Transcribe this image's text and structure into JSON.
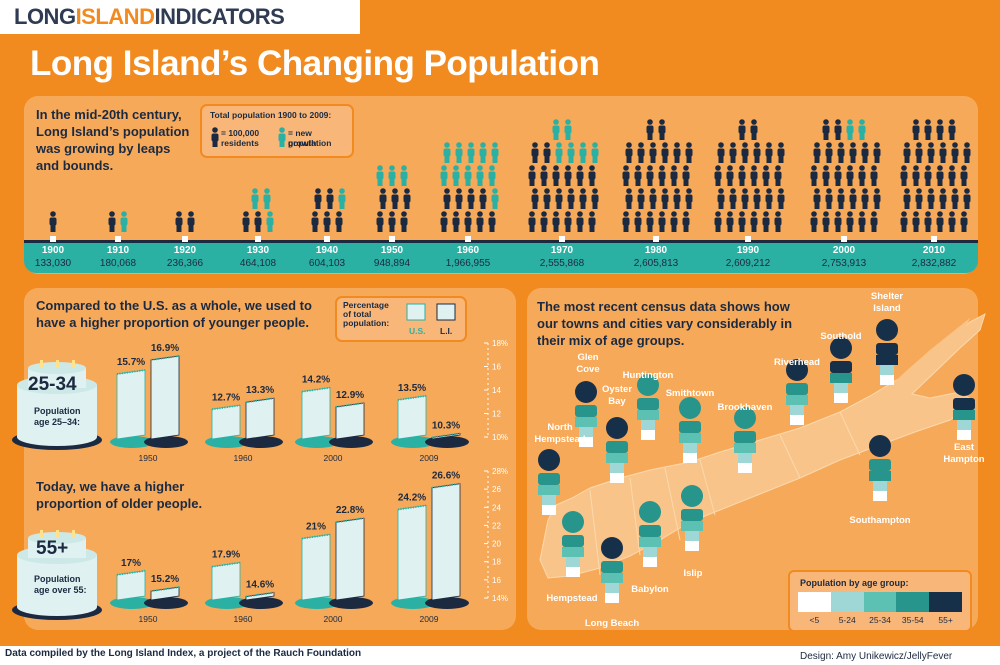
{
  "brand": {
    "part1": "LONG",
    "part2": "ISLAND",
    "part3": "INDICATORS"
  },
  "title": "Long Island’s Changing Population",
  "intro": {
    "line1": "In the mid-20th century,",
    "line2": "Long Island’s population",
    "line3": "was growing by leaps",
    "line4": "and bounds."
  },
  "timeline_legend": {
    "title": "Total population 1900 to 2009:",
    "item1_line1": "= 100,000",
    "item1_line2": "residents",
    "item2_line1": "= new population",
    "item2_line2": "growth"
  },
  "colors": {
    "background": "#f18a1f",
    "panel": "#f7a95a",
    "navy": "#1b2a40",
    "teal": "#2ab1a4",
    "light": "#dff1f0",
    "age_lt5": "#ffffff",
    "age_5_24": "#9fd7d6",
    "age_25_34": "#5cc1b3",
    "age_35_54": "#27958c",
    "age_55plus": "#17304a"
  },
  "section2": {
    "heading_line1": "Compared to the U.S. as a whole, we used to",
    "heading_line2": "have a higher proportion of younger people.",
    "legend_title_line1": "Percentage",
    "legend_title_line2": "of total",
    "legend_title_line3": "population:",
    "legend_us": "U.S.",
    "legend_li": "L.I.",
    "cake1_label": "25-34",
    "cake1_caption_line1": "Population",
    "cake1_caption_line2": "age 25–34:",
    "heading2_line1": "Today, we have a higher",
    "heading2_line2": "proportion of older people.",
    "cake2_label": "55+",
    "cake2_caption_line1": "Population",
    "cake2_caption_line2": "age over 55:"
  },
  "section3": {
    "heading_line1": "The most recent census data shows how",
    "heading_line2": "our towns and cities vary considerably in",
    "heading_line3": "their mix of age groups.",
    "legend_title": "Population by age group:",
    "legend_labels": [
      "<5",
      "5-24",
      "25-34",
      "35-54",
      "55+"
    ],
    "places": [
      {
        "name": "Glen Cove",
        "line1": "Glen",
        "line2": "Cove"
      },
      {
        "name": "Oyster Bay",
        "line1": "Oyster",
        "line2": "Bay"
      },
      {
        "name": "Huntington",
        "line1": "Huntington",
        "line2": ""
      },
      {
        "name": "Smithtown",
        "line1": "Smithtown",
        "line2": ""
      },
      {
        "name": "Brookhaven",
        "line1": "Brookhaven",
        "line2": ""
      },
      {
        "name": "Riverhead",
        "line1": "Riverhead",
        "line2": ""
      },
      {
        "name": "Southold",
        "line1": "Southold",
        "line2": ""
      },
      {
        "name": "Shelter Island",
        "line1": "Shelter",
        "line2": "Island"
      },
      {
        "name": "North Hempstead",
        "line1": "North",
        "line2": "Hempstead"
      },
      {
        "name": "East Hampton",
        "line1": "East",
        "line2": "Hampton"
      },
      {
        "name": "Southampton",
        "line1": "Southampton",
        "line2": ""
      },
      {
        "name": "Hempstead",
        "line1": "Hempstead",
        "line2": ""
      },
      {
        "name": "Islip",
        "line1": "Islip",
        "line2": ""
      },
      {
        "name": "Babylon",
        "line1": "Babylon",
        "line2": ""
      },
      {
        "name": "Long Beach",
        "line1": "Long Beach",
        "line2": ""
      }
    ]
  },
  "footer": {
    "left": "Data compiled by the Long Island Index, a project of the Rauch Foundation",
    "right": "Design: Amy Unikewicz/JellyFever"
  },
  "chart_data": [
    {
      "type": "pictogram",
      "title": "Total population 1900 to 2009:",
      "categories": [
        "1900",
        "1910",
        "1920",
        "1930",
        "1940",
        "1950",
        "1960",
        "1970",
        "1980",
        "1990",
        "2000",
        "2010"
      ],
      "population_labels": [
        "133,030",
        "180,068",
        "236,366",
        "464,108",
        "604,103",
        "948,894",
        "1,966,955",
        "2,555,868",
        "2,605,813",
        "2,609,212",
        "2,753,913",
        "2,832,882"
      ],
      "values": [
        133030,
        180068,
        236366,
        464108,
        604103,
        948894,
        1966955,
        2555868,
        2605813,
        2609212,
        2753913,
        2832882
      ],
      "unit_per_icon": 100000
    },
    {
      "type": "bar",
      "title": "Population age 25–34:",
      "categories": [
        "1950",
        "1960",
        "2000",
        "2009"
      ],
      "series": [
        {
          "name": "U.S.",
          "values": [
            15.7,
            12.7,
            14.2,
            13.5
          ]
        },
        {
          "name": "L.I.",
          "values": [
            16.9,
            13.3,
            12.9,
            10.3
          ]
        }
      ],
      "value_labels": [
        [
          "15.7%",
          "16.9%"
        ],
        [
          "12.7%",
          "13.3%"
        ],
        [
          "14.2%",
          "12.9%"
        ],
        [
          "13.5%",
          "10.3%"
        ]
      ],
      "ylim": [
        10,
        18
      ],
      "ticks": [
        "10%",
        "12",
        "14",
        "16",
        "18%"
      ]
    },
    {
      "type": "bar",
      "title": "Population age over 55:",
      "categories": [
        "1950",
        "1960",
        "2000",
        "2009"
      ],
      "series": [
        {
          "name": "U.S.",
          "values": [
            17,
            17.9,
            21,
            24.2
          ]
        },
        {
          "name": "L.I.",
          "values": [
            15.2,
            14.6,
            22.8,
            26.6
          ]
        }
      ],
      "value_labels": [
        [
          "17%",
          "15.2%"
        ],
        [
          "17.9%",
          "14.6%"
        ],
        [
          "21%",
          "22.8%"
        ],
        [
          "24.2%",
          "26.6%"
        ]
      ],
      "ylim": [
        14,
        28
      ],
      "ticks": [
        "14%",
        "16",
        "18",
        "20",
        "22",
        "24",
        "26",
        "28%"
      ]
    }
  ]
}
